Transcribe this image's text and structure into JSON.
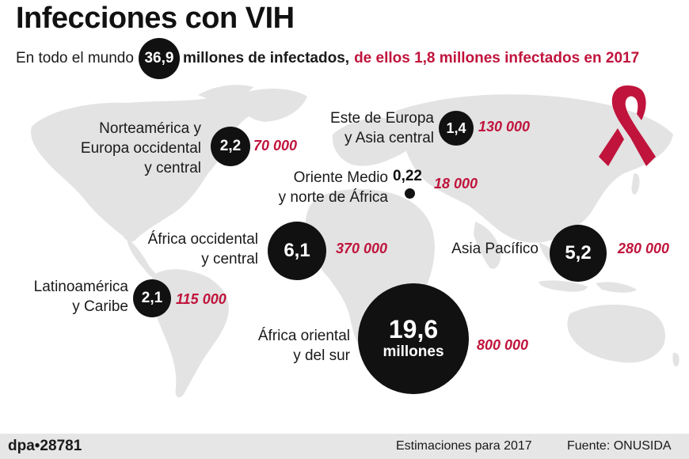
{
  "title": "Infecciones con VIH",
  "subtitle": {
    "prefix": "En todo el mundo",
    "total": "36,9",
    "total_text": "millones de infectados,",
    "new_text": "de ellos 1,8 millones infectados en 2017"
  },
  "colors": {
    "bubble": "#111111",
    "accent": "#c0143c",
    "map": "#e3e3e3"
  },
  "chart_data": {
    "type": "bubble-map",
    "title": "Infecciones con VIH",
    "regions": [
      {
        "id": "na",
        "name_lines": [
          "Norteamérica y",
          "Europa occidental",
          "y central"
        ],
        "infected_label": "2,2",
        "infected_millions": 2.2,
        "new_label": "70 000",
        "new_infections": 70000
      },
      {
        "id": "ee",
        "name_lines": [
          "Este de Europa",
          "y Asia central"
        ],
        "infected_label": "1,4",
        "infected_millions": 1.4,
        "new_label": "130 000",
        "new_infections": 130000
      },
      {
        "id": "me",
        "name_lines": [
          "Oriente Medio",
          "y norte de África"
        ],
        "infected_label": "0,22",
        "infected_millions": 0.22,
        "new_label": "18 000",
        "new_infections": 18000
      },
      {
        "id": "wa",
        "name_lines": [
          "África occidental",
          "y central"
        ],
        "infected_label": "6,1",
        "infected_millions": 6.1,
        "new_label": "370 000",
        "new_infections": 370000
      },
      {
        "id": "ap",
        "name_lines": [
          "Asia Pacífico"
        ],
        "infected_label": "5,2",
        "infected_millions": 5.2,
        "new_label": "280 000",
        "new_infections": 280000
      },
      {
        "id": "la",
        "name_lines": [
          "Latinoamérica",
          "y Caribe"
        ],
        "infected_label": "2,1",
        "infected_millions": 2.1,
        "new_label": "115 000",
        "new_infections": 115000
      },
      {
        "id": "ea",
        "name_lines": [
          "África oriental",
          "y del sur"
        ],
        "infected_label": "19,6",
        "infected_sub": "millones",
        "infected_millions": 19.6,
        "new_label": "800 000",
        "new_infections": 800000
      }
    ]
  },
  "footer": {
    "agency": "dpa•28781",
    "estimate": "Estimaciones para 2017",
    "source": "Fuente: ONUSIDA"
  }
}
